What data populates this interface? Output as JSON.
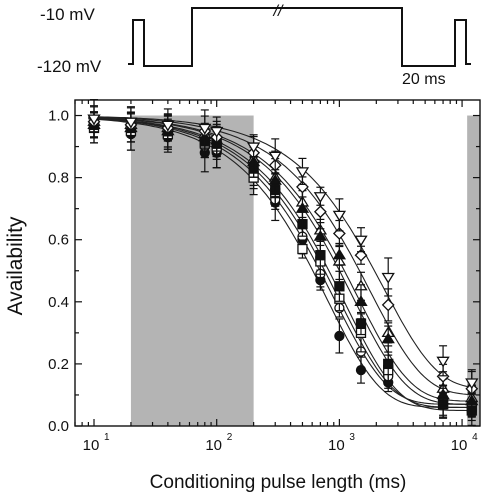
{
  "protocol": {
    "label_top": "-10 mV",
    "label_bottom": "-120 mV",
    "break_mark": "//",
    "duration_label": "20 ms"
  },
  "chart_data": {
    "type": "scatter",
    "title": "",
    "xlabel": "Conditioning pulse length (ms)",
    "ylabel": "Availability",
    "xscale": "log",
    "xlim": [
      7,
      14000
    ],
    "ylim": [
      0.0,
      1.05
    ],
    "xticks": [
      10,
      100,
      1000,
      10000
    ],
    "xtick_labels": [
      "10",
      "10",
      "10",
      "10"
    ],
    "xtick_exponents": [
      "1",
      "2",
      "3",
      "4"
    ],
    "yticks": [
      0.0,
      0.2,
      0.4,
      0.6,
      0.8,
      1.0
    ],
    "ytick_labels": [
      "0.0",
      "0.2",
      "0.4",
      "0.6",
      "0.8",
      "1.0"
    ],
    "grid": false,
    "shaded_regions": [
      [
        20,
        200
      ],
      [
        11000,
        14000
      ]
    ],
    "x": [
      10,
      20,
      40,
      80,
      100,
      200,
      300,
      500,
      700,
      1000,
      1500,
      2500,
      7000,
      12000
    ],
    "series": [
      {
        "marker": "filled-circle",
        "tau": 800,
        "ymin": 0.06,
        "values": [
          0.96,
          0.94,
          0.93,
          0.88,
          0.88,
          0.8,
          0.72,
          0.6,
          0.47,
          0.29,
          0.18,
          0.14,
          0.08,
          0.07
        ]
      },
      {
        "marker": "open-circle",
        "tau": 900,
        "ymin": 0.07,
        "values": [
          0.97,
          0.95,
          0.94,
          0.9,
          0.89,
          0.82,
          0.73,
          0.61,
          0.49,
          0.38,
          0.24,
          0.16,
          0.09,
          0.08
        ]
      },
      {
        "marker": "open-square",
        "tau": 1000,
        "ymin": 0.06,
        "values": [
          0.96,
          0.95,
          0.94,
          0.91,
          0.9,
          0.8,
          0.75,
          0.57,
          0.53,
          0.41,
          0.3,
          0.18,
          0.07,
          0.06
        ]
      },
      {
        "marker": "filled-square",
        "tau": 1100,
        "ymin": 0.05,
        "values": [
          0.97,
          0.96,
          0.95,
          0.92,
          0.91,
          0.83,
          0.76,
          0.65,
          0.55,
          0.45,
          0.33,
          0.2,
          0.07,
          0.05
        ]
      },
      {
        "marker": "open-triangle",
        "tau": 1400,
        "ymin": 0.08,
        "values": [
          0.98,
          0.97,
          0.96,
          0.94,
          0.92,
          0.86,
          0.8,
          0.72,
          0.63,
          0.53,
          0.45,
          0.3,
          0.12,
          0.09
        ]
      },
      {
        "marker": "filled-triangle",
        "tau": 1300,
        "ymin": 0.07,
        "values": [
          0.97,
          0.96,
          0.95,
          0.93,
          0.92,
          0.85,
          0.79,
          0.7,
          0.61,
          0.55,
          0.4,
          0.28,
          0.1,
          0.08
        ]
      },
      {
        "marker": "open-diamond",
        "tau": 1800,
        "ymin": 0.1,
        "values": [
          0.98,
          0.97,
          0.96,
          0.95,
          0.93,
          0.88,
          0.84,
          0.77,
          0.69,
          0.62,
          0.55,
          0.39,
          0.16,
          0.12
        ]
      },
      {
        "marker": "open-invtriangle",
        "tau": 2300,
        "ymin": 0.12,
        "values": [
          0.99,
          0.98,
          0.97,
          0.96,
          0.95,
          0.9,
          0.87,
          0.82,
          0.74,
          0.68,
          0.6,
          0.48,
          0.21,
          0.14
        ]
      }
    ]
  }
}
